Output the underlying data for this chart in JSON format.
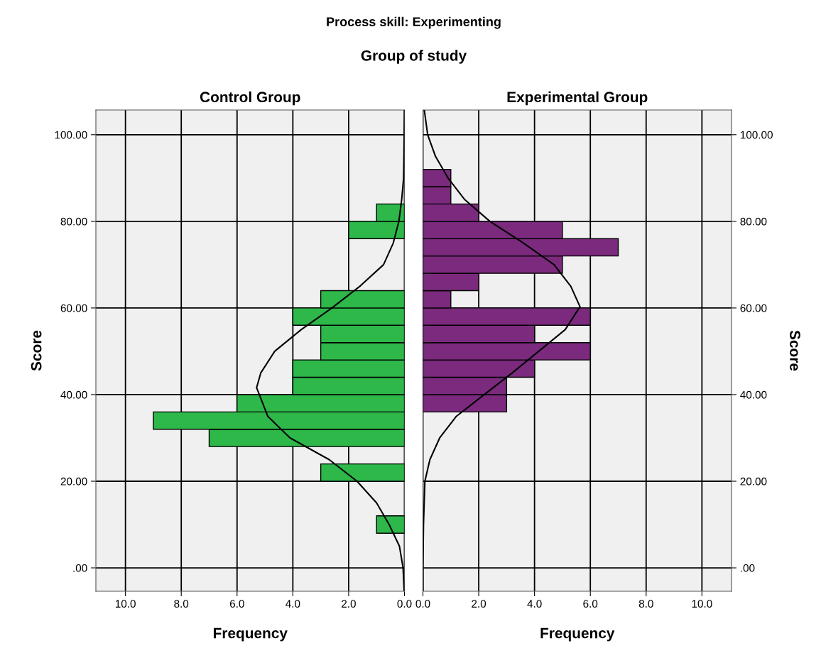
{
  "chart_data": [
    {
      "type": "histogram",
      "orientation": "horizontal",
      "title": "Control Group",
      "annotations": [
        "Process skill: Experimenting",
        "Group of study"
      ],
      "xlabel": "Frequency",
      "ylabel": "Score",
      "bins": [
        8,
        12,
        16,
        20,
        24,
        28,
        32,
        36,
        40,
        44,
        48,
        52,
        56,
        60,
        64,
        68,
        72,
        76,
        80,
        84,
        88,
        92
      ],
      "values": [
        1,
        0,
        0,
        3,
        0,
        7,
        9,
        6,
        4,
        4,
        3,
        3,
        4,
        3,
        0,
        0,
        0,
        2,
        1,
        0,
        0
      ],
      "color": "#2eb84a",
      "series": [
        {
          "type": "line",
          "color": "#000000",
          "x": [
            -5.4,
            0,
            5,
            10,
            15,
            20,
            25,
            30,
            35,
            41.6,
            45,
            50,
            55,
            60,
            65,
            70,
            75,
            80,
            85,
            90,
            100,
            105.7
          ],
          "values": [
            0.01,
            0.05,
            0.18,
            0.55,
            1.0,
            1.7,
            2.7,
            4.1,
            4.9,
            5.3,
            5.15,
            4.65,
            3.7,
            2.6,
            1.6,
            0.75,
            0.4,
            0.2,
            0.1,
            0.03,
            0.01,
            0
          ]
        }
      ],
      "xlim": [
        11.06,
        0
      ],
      "xticks": [
        {
          "value": 10,
          "label": "10.0"
        },
        {
          "value": 8,
          "label": "8.0"
        },
        {
          "value": 6,
          "label": "6.0"
        },
        {
          "value": 4,
          "label": "4.0"
        },
        {
          "value": 2,
          "label": "2.0"
        },
        {
          "value": 0,
          "label": "0.0"
        }
      ],
      "ylim": [
        -5.4,
        105.7
      ],
      "yticks": [
        {
          "value": 0,
          "label": ".00"
        },
        {
          "value": 20,
          "label": "20.00"
        },
        {
          "value": 40,
          "label": "40.00"
        },
        {
          "value": 60,
          "label": "60.00"
        },
        {
          "value": 80,
          "label": "80.00"
        },
        {
          "value": 100,
          "label": "100.00"
        }
      ],
      "grid": true
    },
    {
      "type": "histogram",
      "orientation": "horizontal",
      "title": "Experimental Group",
      "xlabel": "Frequency",
      "ylabel": "Score",
      "bins": [
        8,
        12,
        16,
        20,
        24,
        28,
        32,
        36,
        40,
        44,
        48,
        52,
        56,
        60,
        64,
        68,
        72,
        76,
        80,
        84,
        88,
        92
      ],
      "values": [
        0,
        0,
        0,
        0,
        0,
        0,
        0,
        3,
        3,
        4,
        6,
        4,
        6,
        1,
        2,
        5,
        7,
        5,
        2,
        1,
        1
      ],
      "color": "#7b2a7e",
      "series": [
        {
          "type": "line",
          "color": "#000000",
          "x": [
            -5.4,
            0,
            10,
            20,
            25,
            30,
            35,
            40,
            45,
            50,
            55,
            60.3,
            65,
            70,
            75,
            80,
            85,
            90,
            95,
            100,
            105.7
          ],
          "values": [
            0,
            0,
            0.02,
            0.07,
            0.25,
            0.6,
            1.2,
            2.2,
            3.2,
            4.15,
            5.1,
            5.63,
            5.3,
            4.7,
            3.6,
            2.4,
            1.5,
            0.9,
            0.45,
            0.17,
            0.05
          ]
        }
      ],
      "xlim": [
        0,
        11.06
      ],
      "xticks": [
        {
          "value": 0,
          "label": "0.0"
        },
        {
          "value": 2,
          "label": "2.0"
        },
        {
          "value": 4,
          "label": "4.0"
        },
        {
          "value": 6,
          "label": "6.0"
        },
        {
          "value": 8,
          "label": "8.0"
        },
        {
          "value": 10,
          "label": "10.0"
        }
      ],
      "ylim": [
        -5.4,
        105.7
      ],
      "yticks": [
        {
          "value": 0,
          "label": ".00"
        },
        {
          "value": 20,
          "label": "20.00"
        },
        {
          "value": 40,
          "label": "40.00"
        },
        {
          "value": 60,
          "label": "60.00"
        },
        {
          "value": 80,
          "label": "80.00"
        },
        {
          "value": 100,
          "label": "100.00"
        }
      ],
      "grid": true
    }
  ]
}
